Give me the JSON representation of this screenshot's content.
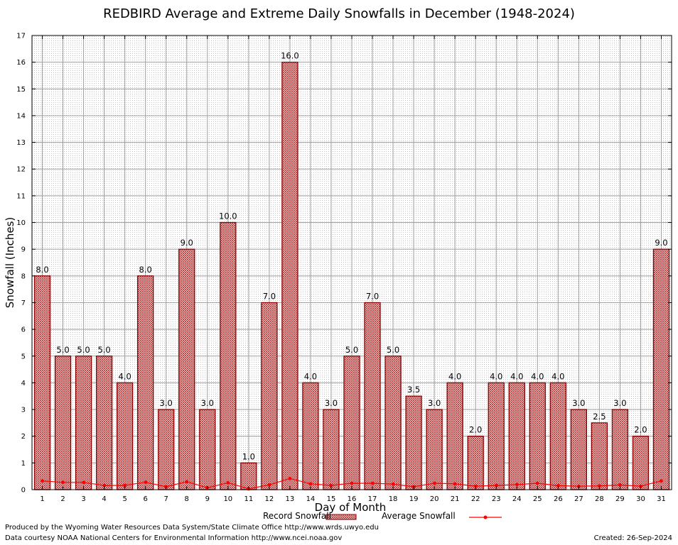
{
  "chart_data": {
    "type": "bar",
    "title": "REDBIRD Average and Extreme Daily Snowfalls in December (1948-2024)",
    "xlabel": "Day of Month",
    "ylabel": "Snowfall (Inches)",
    "ylim": [
      0,
      17
    ],
    "yticks": [
      "0",
      "1",
      "2",
      "3",
      "4",
      "5",
      "6",
      "7",
      "8",
      "9",
      "10",
      "11",
      "12",
      "13",
      "14",
      "15",
      "16",
      "17"
    ],
    "categories": [
      "1",
      "2",
      "3",
      "4",
      "5",
      "6",
      "7",
      "8",
      "9",
      "10",
      "11",
      "12",
      "13",
      "14",
      "15",
      "16",
      "17",
      "18",
      "19",
      "20",
      "21",
      "22",
      "23",
      "24",
      "25",
      "26",
      "27",
      "28",
      "29",
      "30",
      "31"
    ],
    "series": [
      {
        "name": "Record Snowfall",
        "kind": "bar",
        "values": [
          8.0,
          5.0,
          5.0,
          5.0,
          4.0,
          8.0,
          3.0,
          9.0,
          3.0,
          10.0,
          1.0,
          7.0,
          16.0,
          4.0,
          3.0,
          5.0,
          7.0,
          5.0,
          3.5,
          3.0,
          4.0,
          2.0,
          4.0,
          4.0,
          4.0,
          4.0,
          3.0,
          2.5,
          3.0,
          2.0,
          9.0
        ],
        "labels": [
          "8.0",
          "5.0",
          "5.0",
          "5.0",
          "4.0",
          "8.0",
          "3.0",
          "9.0",
          "3.0",
          "10.0",
          "1.0",
          "7.0",
          "16.0",
          "4.0",
          "3.0",
          "5.0",
          "7.0",
          "5.0",
          "3.5",
          "3.0",
          "4.0",
          "2.0",
          "4.0",
          "4.0",
          "4.0",
          "4.0",
          "3.0",
          "2.5",
          "3.0",
          "2.0",
          "9.0"
        ]
      },
      {
        "name": "Average Snowfall",
        "kind": "line",
        "values": [
          0.33,
          0.27,
          0.27,
          0.16,
          0.16,
          0.28,
          0.11,
          0.3,
          0.07,
          0.26,
          0.03,
          0.18,
          0.42,
          0.22,
          0.16,
          0.24,
          0.24,
          0.21,
          0.11,
          0.24,
          0.22,
          0.13,
          0.16,
          0.19,
          0.24,
          0.15,
          0.13,
          0.14,
          0.18,
          0.13,
          0.33
        ]
      }
    ],
    "grid": true,
    "legend_position": "bottom-center",
    "colors": {
      "bar_fill": "#b03030",
      "bar_edge": "#8b0000",
      "line": "#ff0000",
      "grid": "#a0a0a0"
    }
  },
  "footer": {
    "produced_by": "Produced by the Wyoming Water Resources Data System/State Climate Office http://www.wrds.uwyo.edu",
    "courtesy": "Data courtesy NOAA National Centers for Environmental Information http://www.ncei.noaa.gov",
    "created": "Created:  26-Sep-2024"
  }
}
